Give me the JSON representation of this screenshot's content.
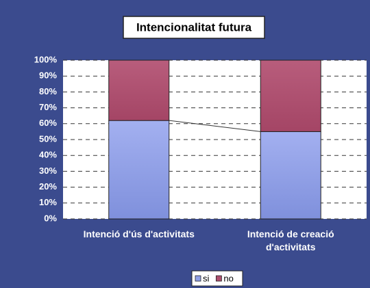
{
  "chart_data": {
    "type": "stacked_bar",
    "title": "Intencionalitat futura",
    "categories": [
      "Intenció d'ús d'activitats",
      "Intenció de creació d'activitats"
    ],
    "series": [
      {
        "name": "si",
        "color": "#8f9fe6",
        "values": [
          62,
          55
        ]
      },
      {
        "name": "no",
        "color": "#ad4f6e",
        "values": [
          38,
          45
        ]
      }
    ],
    "ylim": [
      0,
      100
    ],
    "yticks": [
      {
        "value": 0,
        "label": "0%"
      },
      {
        "value": 10,
        "label": "10%"
      },
      {
        "value": 20,
        "label": "20%"
      },
      {
        "value": 30,
        "label": "30%"
      },
      {
        "value": 40,
        "label": "40%"
      },
      {
        "value": 50,
        "label": "50%"
      },
      {
        "value": 60,
        "label": "60%"
      },
      {
        "value": 70,
        "label": "70%"
      },
      {
        "value": 80,
        "label": "80%"
      },
      {
        "value": 90,
        "label": "90%"
      },
      {
        "value": 100,
        "label": "100%"
      }
    ],
    "grid": true,
    "legend": "bottom"
  }
}
